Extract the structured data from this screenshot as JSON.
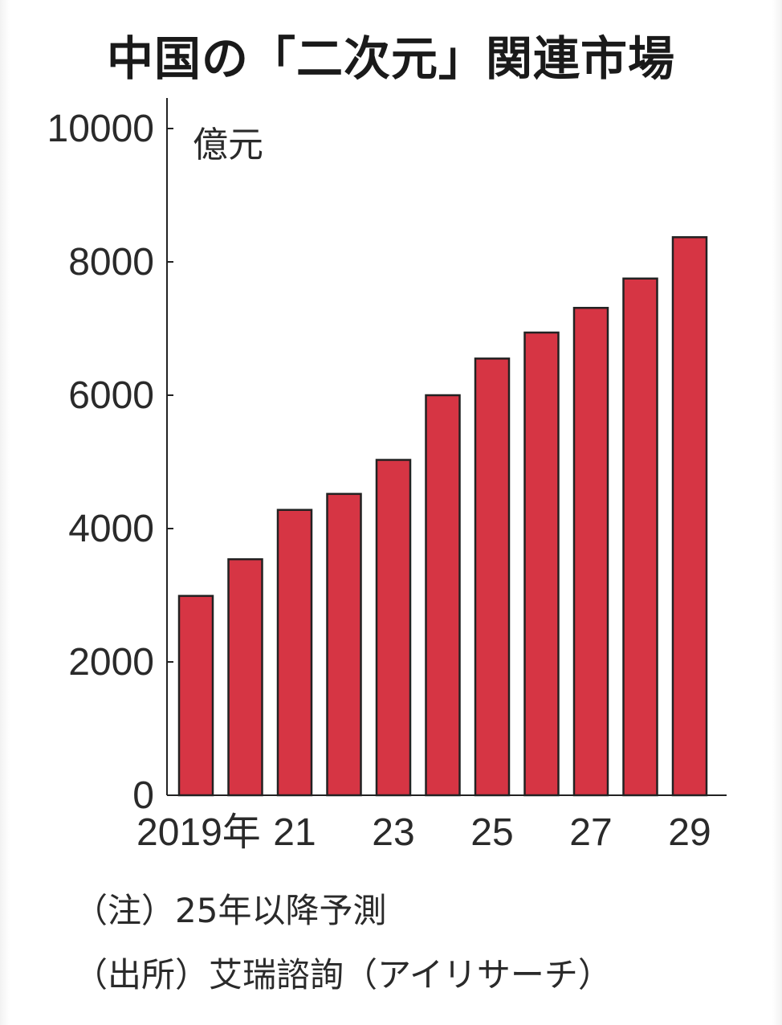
{
  "title": "中国の「二次元」関連市場",
  "chart_data": {
    "type": "bar",
    "title": "中国の「二次元」関連市場",
    "unit_label": "億元",
    "ylim": [
      0,
      10000
    ],
    "yticks": [
      "10000",
      "8000",
      "6000",
      "4000",
      "2000",
      "0"
    ],
    "ytick_values": [
      10000,
      8000,
      6000,
      4000,
      2000,
      0
    ],
    "categories": [
      "2019",
      "2020",
      "2021",
      "2022",
      "2023",
      "2024",
      "2025",
      "2026",
      "2027",
      "2028",
      "2029"
    ],
    "values": [
      2990,
      3540,
      4280,
      4520,
      5030,
      6000,
      6550,
      6940,
      7310,
      7750,
      8370
    ],
    "x_tick_labels": [
      {
        "category": "2019",
        "label": "2019年"
      },
      {
        "category": "2021",
        "label": "21"
      },
      {
        "category": "2023",
        "label": "23"
      },
      {
        "category": "2025",
        "label": "25"
      },
      {
        "category": "2027",
        "label": "27"
      },
      {
        "category": "2029",
        "label": "29"
      }
    ],
    "bar_color": "#d63544",
    "grid": false
  },
  "notes": {
    "note": "（注）25年以降予測",
    "source": "（出所）艾瑞諮詢（アイリサーチ）"
  }
}
